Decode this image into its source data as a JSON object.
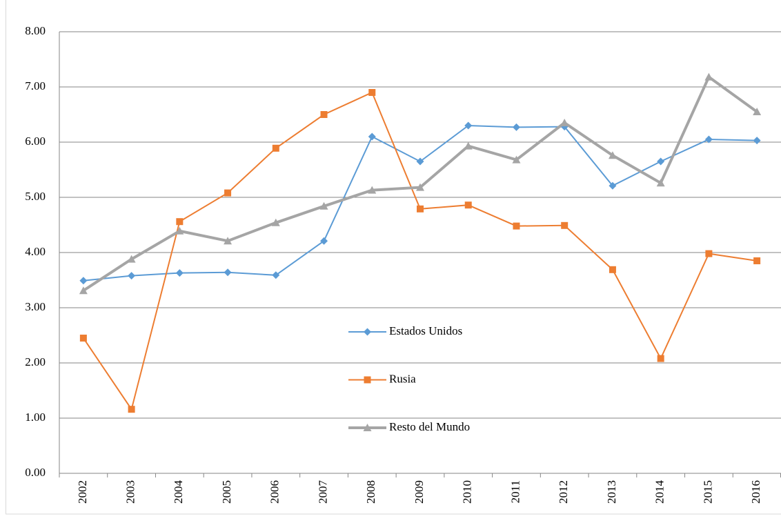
{
  "chart_data": {
    "type": "line",
    "categories": [
      "2002",
      "2003",
      "2004",
      "2005",
      "2006",
      "2007",
      "2008",
      "2009",
      "2010",
      "2011",
      "2012",
      "2013",
      "2014",
      "2015",
      "2016"
    ],
    "series": [
      {
        "name": "Estados Unidos",
        "color": "#5b9bd5",
        "marker": "diamond",
        "values": [
          3.49,
          3.58,
          3.63,
          3.64,
          3.59,
          4.21,
          6.1,
          5.65,
          6.3,
          6.27,
          6.28,
          5.21,
          5.65,
          6.05,
          6.03
        ]
      },
      {
        "name": "Rusia",
        "color": "#ed7d31",
        "marker": "square",
        "values": [
          2.45,
          1.16,
          4.56,
          5.08,
          5.89,
          6.5,
          6.9,
          4.79,
          4.86,
          4.48,
          4.49,
          3.69,
          2.08,
          3.98,
          3.85
        ]
      },
      {
        "name": "Resto del Mundo",
        "color": "#a5a5a5",
        "marker": "triangle",
        "values": [
          3.31,
          3.88,
          4.39,
          4.21,
          4.54,
          4.84,
          5.13,
          5.18,
          5.93,
          5.68,
          6.35,
          5.76,
          5.26,
          7.18,
          6.55
        ]
      }
    ],
    "ylim": [
      0,
      8
    ],
    "yticks": [
      {
        "value": 0,
        "label": "0.00"
      },
      {
        "value": 1,
        "label": "1.00"
      },
      {
        "value": 2,
        "label": "2.00"
      },
      {
        "value": 3,
        "label": "3.00"
      },
      {
        "value": 4,
        "label": "4.00"
      },
      {
        "value": 5,
        "label": "5.00"
      },
      {
        "value": 6,
        "label": "6.00"
      },
      {
        "value": 7,
        "label": "7.00"
      },
      {
        "value": 8,
        "label": "8.00"
      }
    ],
    "grid": true,
    "legend": "center"
  }
}
